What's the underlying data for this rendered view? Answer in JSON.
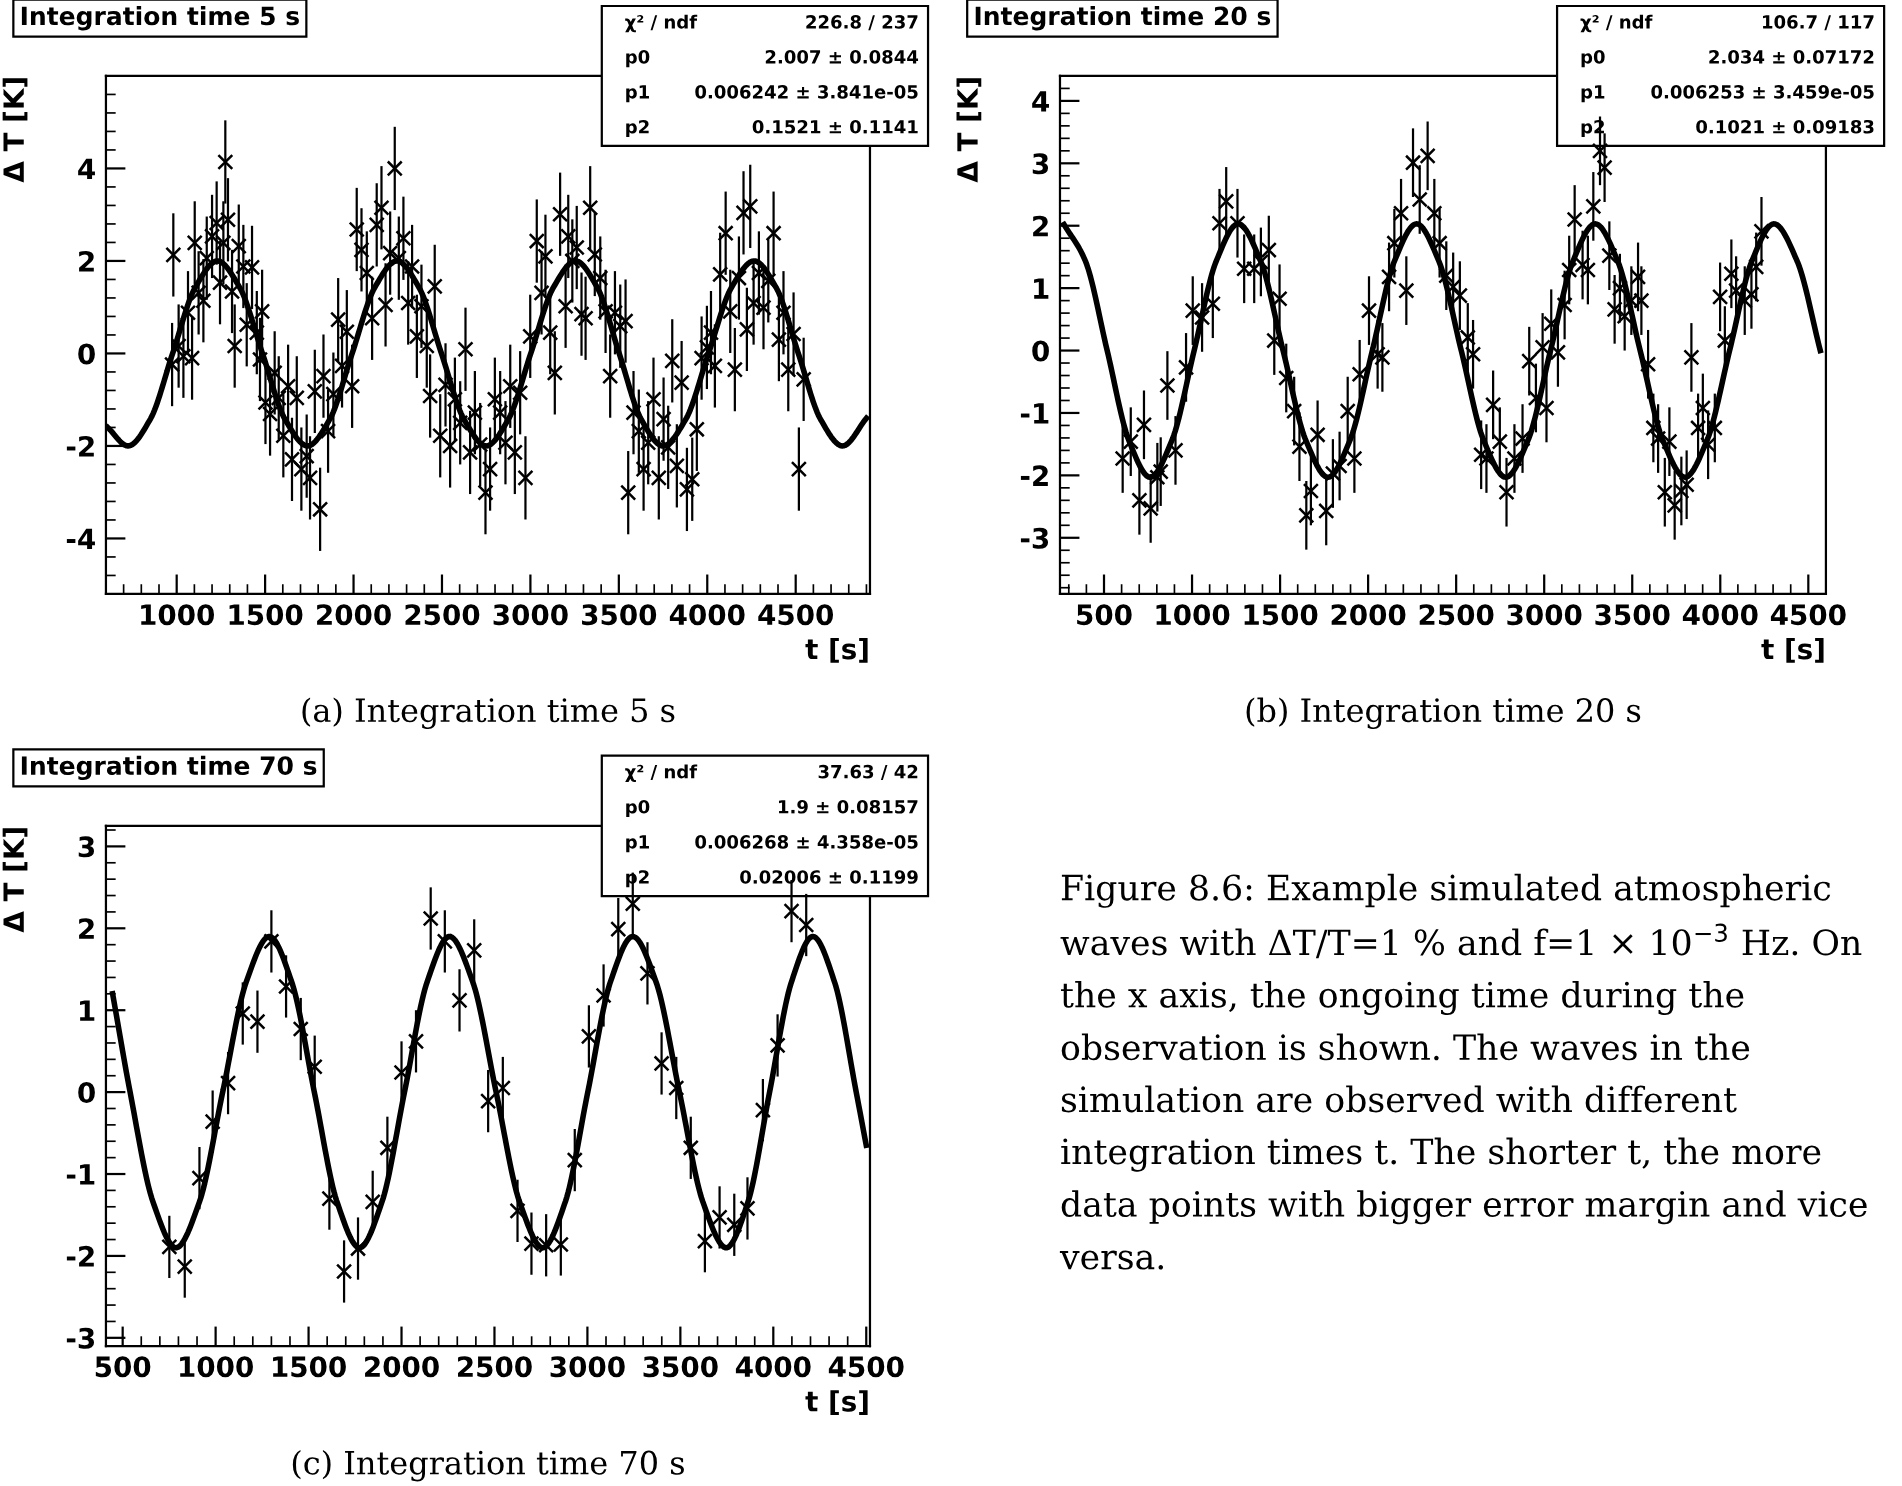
{
  "chart_data": [
    {
      "type": "scatter",
      "title": "Integration time 5 s",
      "xlabel": "t [s]",
      "ylabel": "Δ T [K]",
      "annotations": [
        "χ² / ndf",
        "226.8 / 237",
        "p0",
        "2.007 ± 0.0844",
        "p1",
        "0.006242 ± 3.841e-05",
        "p2",
        "0.1521 ± 0.1141",
        "(a) Integration time 5 s"
      ],
      "xlim": [
        600,
        4920
      ],
      "ylim": [
        -5.2,
        6.0
      ],
      "xticks": [
        1000,
        1500,
        2000,
        2500,
        3000,
        3500,
        4000,
        4500
      ],
      "yticks": [
        -4,
        -2,
        0,
        2,
        4
      ],
      "series": [
        {
          "type": "scatter",
          "color": "#000000",
          "marker": "cross",
          "x": [
            981,
            974,
            1011,
            1038,
            1064,
            1087,
            1102,
            1124,
            1151,
            1170,
            1200,
            1226,
            1245,
            1264,
            1275,
            1290,
            1313,
            1328,
            1351,
            1377,
            1396,
            1426,
            1453,
            1471,
            1483,
            1502,
            1528,
            1554,
            1577,
            1603,
            1630,
            1652,
            1679,
            1705,
            1735,
            1754,
            1781,
            1811,
            1830,
            1856,
            1886,
            1913,
            1935,
            1962,
            1992,
            2018,
            2045,
            2075,
            2105,
            2131,
            2158,
            2181,
            2207,
            2233,
            2256,
            2282,
            2309,
            2331,
            2358,
            2384,
            2414,
            2433,
            2459,
            2490,
            2520,
            2546,
            2573,
            2603,
            2633,
            2659,
            2686,
            2716,
            2746,
            2772,
            2799,
            2829,
            2859,
            2886,
            2912,
            2942,
            2972,
            2999,
            3036,
            3063,
            3085,
            3112,
            3138,
            3168,
            3199,
            3214,
            3237,
            3262,
            3289,
            3312,
            3338,
            3364,
            3395,
            3425,
            3451,
            3478,
            3508,
            3538,
            3553,
            3583,
            3613,
            3640,
            3666,
            3696,
            3726,
            3753,
            3779,
            3802,
            3828,
            3855,
            3885,
            3915,
            3941,
            3968,
            3998,
            4021,
            4043,
            4073,
            4104,
            4130,
            4156,
            4179,
            4205,
            4224,
            4243,
            4262,
            4292,
            4318,
            4345,
            4375,
            4405,
            4431,
            4458,
            4488,
            4518,
            4545
          ],
          "values": [
            2.13,
            -0.24,
            0.16,
            -0.06,
            0.88,
            -0.1,
            2.39,
            1.31,
            1.14,
            2.06,
            2.53,
            2.82,
            1.53,
            2.39,
            4.14,
            2.89,
            1.34,
            0.16,
            2.32,
            1.88,
            0.62,
            1.86,
            0.45,
            -0.13,
            0.91,
            -1.06,
            -1.31,
            -0.42,
            -0.96,
            -1.78,
            -0.71,
            -2.29,
            -0.96,
            -2.5,
            -2.22,
            -2.69,
            -0.82,
            -3.37,
            -0.49,
            -1.68,
            -0.88,
            0.73,
            -0.27,
            0.47,
            -0.71,
            2.68,
            2.24,
            1.74,
            0.76,
            2.78,
            3.15,
            1.05,
            2.17,
            4.0,
            2.06,
            2.49,
            1.09,
            1.88,
            0.37,
            1.02,
            0.16,
            -0.92,
            1.45,
            -1.78,
            -0.68,
            -2.0,
            -0.99,
            -1.5,
            0.09,
            -2.14,
            -1.28,
            -1.97,
            -3.01,
            -2.5,
            -0.99,
            -1.28,
            -1.93,
            -0.71,
            -2.14,
            -0.85,
            -2.69,
            0.37,
            2.43,
            1.31,
            2.1,
            0.45,
            -0.42,
            3.01,
            1.02,
            2.53,
            2.0,
            2.29,
            0.85,
            0.76,
            3.15,
            2.14,
            1.63,
            0.91,
            -0.49,
            0.88,
            0.59,
            0.7,
            -3.01,
            -1.28,
            -1.68,
            -2.5,
            -1.93,
            -0.99,
            -2.69,
            -1.42,
            -2.03,
            -0.16,
            -2.43,
            -0.63,
            -2.94,
            -2.72,
            -1.64,
            -0.1,
            0.13,
            0.45,
            -0.27,
            1.71,
            2.6,
            0.91,
            -0.35,
            1.63,
            3.04,
            0.52,
            3.18,
            1.09,
            1.74,
            0.99,
            1.57,
            2.6,
            0.3,
            0.88,
            -0.35,
            0.42,
            -2.5,
            -0.56
          ],
          "errors": [
            0.9,
            0.9,
            0.9,
            0.9,
            0.9,
            0.9,
            0.9,
            0.9,
            0.9,
            0.9,
            0.9,
            0.9,
            0.9,
            0.9,
            0.9,
            0.9,
            0.9,
            0.9,
            0.9,
            0.9,
            0.9,
            0.9,
            0.9,
            0.9,
            0.9,
            0.9,
            0.9,
            0.9,
            0.9,
            0.9,
            0.9,
            0.9,
            0.9,
            0.9,
            0.9,
            0.9,
            0.9,
            0.9,
            0.9,
            0.9,
            0.9,
            0.9,
            0.9,
            0.9,
            0.9,
            0.9,
            0.9,
            0.9,
            0.9,
            0.9,
            0.9,
            0.9,
            0.9,
            0.9,
            0.9,
            0.9,
            0.9,
            0.9,
            0.9,
            0.9,
            0.9,
            0.9,
            0.9,
            0.9,
            0.9,
            0.9,
            0.9,
            0.9,
            0.9,
            0.9,
            0.9,
            0.9,
            0.9,
            0.9,
            0.9,
            0.9,
            0.9,
            0.9,
            0.9,
            0.9,
            0.9,
            0.9,
            0.9,
            0.9,
            0.9,
            0.9,
            0.9,
            0.9,
            0.9,
            0.9,
            0.9,
            0.9,
            0.9,
            0.9,
            0.9,
            0.9,
            0.9,
            0.9,
            0.9,
            0.9,
            0.9,
            0.9,
            0.9,
            0.9,
            0.9,
            0.9,
            0.9,
            0.9,
            0.9,
            0.9,
            0.9,
            0.9,
            0.9,
            0.9,
            0.9,
            0.9,
            0.9,
            0.9,
            0.9,
            0.9,
            0.9,
            0.9,
            0.9,
            0.9,
            0.9,
            0.9,
            0.9,
            0.9,
            0.9,
            0.9,
            0.9,
            0.9,
            0.9,
            0.9,
            0.9,
            0.9,
            0.9,
            0.9,
            0.9,
            0.9
          ]
        },
        {
          "type": "line",
          "color": "#000000",
          "marker": "none",
          "line_style": "solid",
          "x": [
            610,
            725,
            851,
            977,
            1104,
            1230,
            1357,
            1485,
            1612,
            1740,
            1866,
            1992,
            2119,
            2245,
            2371,
            2497,
            2624,
            2750,
            2876,
            3002,
            3129,
            3255,
            3379,
            3502,
            3626,
            3750,
            3879,
            4007,
            4136,
            4265,
            4390,
            4515,
            4640,
            4765,
            4900
          ],
          "values": [
            -1.6,
            -2.0,
            -1.42,
            0,
            1.42,
            2.0,
            1.42,
            0,
            -1.42,
            -2.0,
            -1.42,
            0,
            1.42,
            2.0,
            1.42,
            0,
            -1.42,
            -2.0,
            -1.42,
            0,
            1.42,
            2.0,
            1.42,
            0,
            -1.42,
            -2.0,
            -1.42,
            0,
            1.42,
            2.0,
            1.42,
            0,
            -1.42,
            -2.0,
            -1.4
          ]
        }
      ]
    },
    {
      "type": "scatter",
      "title": "Integration time 20 s",
      "xlabel": "t [s]",
      "ylabel": "Δ T [K]",
      "annotations": [
        "χ² / ndf",
        "106.7 / 117",
        "p0",
        "2.034 ± 0.07172",
        "p1",
        "0.006253 ± 3.459e-05",
        "p2",
        "0.1021 ± 0.09183",
        "(b) Integration time 20 s"
      ],
      "xlim": [
        250,
        4600
      ],
      "ylim": [
        -3.9,
        4.4
      ],
      "xticks": [
        500,
        1000,
        1500,
        2000,
        2500,
        3000,
        3500,
        4000,
        4500
      ],
      "yticks": [
        -3,
        -2,
        -1,
        0,
        1,
        2,
        3,
        4
      ],
      "series": [
        {
          "type": "scatter",
          "color": "#000000",
          "marker": "cross",
          "x": [
            606,
            652,
            701,
            727,
            765,
            803,
            822,
            860,
            906,
            966,
            1004,
            1057,
            1118,
            1156,
            1194,
            1258,
            1296,
            1353,
            1391,
            1436,
            1467,
            1497,
            1535,
            1580,
            1610,
            1649,
            1675,
            1713,
            1762,
            1800,
            1838,
            1884,
            1922,
            1952,
            2005,
            2054,
            2081,
            2119,
            2149,
            2187,
            2217,
            2255,
            2293,
            2338,
            2376,
            2406,
            2444,
            2483,
            2521,
            2566,
            2596,
            2642,
            2672,
            2710,
            2748,
            2786,
            2831,
            2877,
            2915,
            2953,
            2991,
            3013,
            3040,
            3078,
            3116,
            3142,
            3173,
            3218,
            3248,
            3279,
            3317,
            3343,
            3370,
            3400,
            3430,
            3457,
            3495,
            3533,
            3552,
            3590,
            3620,
            3647,
            3685,
            3711,
            3741,
            3779,
            3809,
            3836,
            3874,
            3901,
            3931,
            3969,
            3999,
            4026,
            4063,
            4090,
            4139,
            4177,
            4204,
            4234
          ],
          "values": [
            -1.73,
            -1.46,
            -2.4,
            -1.19,
            -2.53,
            -2.03,
            -1.94,
            -0.56,
            -1.6,
            -0.27,
            0.64,
            0.53,
            0.75,
            2.04,
            2.39,
            2.04,
            1.31,
            1.31,
            1.42,
            1.61,
            0.16,
            0.83,
            -0.44,
            -0.97,
            -1.54,
            -2.64,
            -2.25,
            -1.35,
            -2.57,
            -1.97,
            -1.85,
            -0.97,
            -1.73,
            -0.38,
            0.64,
            -0.06,
            -0.11,
            1.18,
            1.72,
            2.2,
            0.96,
            3.01,
            2.42,
            3.12,
            2.2,
            1.72,
            1.2,
            1.02,
            0.88,
            0.21,
            -0.06,
            -1.67,
            -1.73,
            -0.87,
            -1.46,
            -2.27,
            -1.73,
            -1.41,
            -0.17,
            -0.76,
            0.05,
            -0.92,
            0.43,
            -0.03,
            0.73,
            1.29,
            2.1,
            1.37,
            1.29,
            2.31,
            3.2,
            2.93,
            1.52,
            0.66,
            1.0,
            0.55,
            0.8,
            1.18,
            0.8,
            -0.22,
            -1.24,
            -1.41,
            -2.27,
            -1.46,
            -2.48,
            -2.25,
            -2.15,
            -0.11,
            -1.24,
            -0.92,
            -1.51,
            -1.24,
            0.86,
            0.16,
            1.23,
            0.96,
            0.8,
            0.9,
            1.34,
            1.91
          ],
          "errors": [
            0.55,
            0.55,
            0.55,
            0.55,
            0.55,
            0.55,
            0.55,
            0.55,
            0.55,
            0.55,
            0.55,
            0.55,
            0.55,
            0.55,
            0.55,
            0.55,
            0.55,
            0.55,
            0.55,
            0.55,
            0.55,
            0.55,
            0.55,
            0.55,
            0.55,
            0.55,
            0.55,
            0.55,
            0.55,
            0.55,
            0.55,
            0.55,
            0.55,
            0.55,
            0.55,
            0.55,
            0.55,
            0.55,
            0.55,
            0.55,
            0.55,
            0.55,
            0.55,
            0.55,
            0.55,
            0.55,
            0.55,
            0.55,
            0.55,
            0.55,
            0.55,
            0.55,
            0.55,
            0.55,
            0.55,
            0.55,
            0.55,
            0.55,
            0.55,
            0.55,
            0.55,
            0.55,
            0.55,
            0.55,
            0.55,
            0.55,
            0.55,
            0.55,
            0.55,
            0.55,
            0.55,
            0.55,
            0.55,
            0.55,
            0.55,
            0.55,
            0.55,
            0.55,
            0.55,
            0.55,
            0.55,
            0.55,
            0.55,
            0.55,
            0.55,
            0.55,
            0.55,
            0.55,
            0.55,
            0.55,
            0.55,
            0.55,
            0.55,
            0.55,
            0.55,
            0.55,
            0.55,
            0.55,
            0.55,
            0.55
          ]
        },
        {
          "type": "line",
          "color": "#000000",
          "marker": "none",
          "line_style": "solid",
          "x": [
            273,
            395,
            518,
            640,
            762,
            887,
            1012,
            1137,
            1262,
            1390,
            1517,
            1645,
            1772,
            1898,
            2024,
            2149,
            2275,
            2402,
            2529,
            2655,
            2782,
            2909,
            3036,
            3163,
            3290,
            3418,
            3545,
            3673,
            3800,
            3926,
            4053,
            4179,
            4305,
            4437,
            4568
          ],
          "values": [
            2.02,
            1.43,
            0,
            -1.43,
            -2.03,
            -1.43,
            0,
            1.43,
            2.03,
            1.43,
            0,
            -1.43,
            -2.03,
            -1.43,
            0,
            1.43,
            2.03,
            1.43,
            0,
            -1.43,
            -2.03,
            -1.43,
            0,
            1.43,
            2.03,
            1.43,
            0,
            -1.43,
            -2.03,
            -1.43,
            0,
            1.43,
            2.03,
            1.43,
            0
          ]
        }
      ]
    },
    {
      "type": "scatter",
      "title": "Integration time 70 s",
      "xlabel": "t [s]",
      "ylabel": "Δ T [K]",
      "annotations": [
        "χ² / ndf",
        "37.63 / 42",
        "p0",
        "1.9 ± 0.08157",
        "p1",
        "0.006268 ± 4.358e-05",
        "p2",
        "0.02006 ± 0.1199",
        "(c) Integration time 70 s"
      ],
      "xlim": [
        410,
        4520
      ],
      "ylim": [
        -3.1,
        3.25
      ],
      "xticks": [
        500,
        1000,
        1500,
        2000,
        2500,
        3000,
        3500,
        4000,
        4500
      ],
      "yticks": [
        -3,
        -2,
        -1,
        0,
        1,
        2,
        3
      ],
      "series": [
        {
          "type": "scatter",
          "color": "#000000",
          "marker": "cross",
          "x": [
            751,
            834,
            913,
            984,
            1067,
            1146,
            1225,
            1300,
            1379,
            1458,
            1533,
            1612,
            1691,
            1766,
            1845,
            1924,
            2000,
            2078,
            2157,
            2233,
            2312,
            2391,
            2466,
            2545,
            2624,
            2699,
            2778,
            2857,
            2932,
            3008,
            3087,
            3166,
            3244,
            3323,
            3399,
            3478,
            3556,
            3632,
            3711,
            3790,
            3861,
            3944,
            4023,
            4098,
            4177
          ],
          "values": [
            -1.89,
            -2.13,
            -1.05,
            -0.36,
            0.11,
            0.96,
            0.86,
            1.84,
            1.29,
            0.77,
            0.31,
            -1.3,
            -2.19,
            -1.91,
            -1.34,
            -0.68,
            0.24,
            0.62,
            2.12,
            1.84,
            1.12,
            1.73,
            -0.11,
            0.05,
            -1.45,
            -1.85,
            -1.87,
            -1.86,
            -0.83,
            0.68,
            1.18,
            1.99,
            2.3,
            1.45,
            0.35,
            0.05,
            -0.68,
            -1.82,
            -1.53,
            -1.62,
            -1.42,
            -0.22,
            0.57,
            2.21,
            2.04
          ],
          "errors": [
            0.38,
            0.38,
            0.38,
            0.38,
            0.38,
            0.38,
            0.38,
            0.38,
            0.38,
            0.38,
            0.38,
            0.38,
            0.38,
            0.38,
            0.38,
            0.38,
            0.38,
            0.38,
            0.38,
            0.38,
            0.38,
            0.38,
            0.38,
            0.38,
            0.38,
            0.38,
            0.38,
            0.38,
            0.38,
            0.38,
            0.38,
            0.38,
            0.38,
            0.38,
            0.38,
            0.38,
            0.38,
            0.38,
            0.38,
            0.38,
            0.38,
            0.38,
            0.38,
            0.38,
            0.38
          ]
        },
        {
          "type": "line",
          "color": "#000000",
          "marker": "none",
          "line_style": "solid",
          "x": [
            446,
            540,
            663,
            787,
            913,
            1038,
            1164,
            1289,
            1410,
            1531,
            1653,
            1774,
            1895,
            2016,
            2137,
            2258,
            2384,
            2509,
            2635,
            2760,
            2881,
            3002,
            3123,
            3244,
            3370,
            3495,
            3621,
            3747,
            3864,
            3980,
            4097,
            4213,
            4330,
            4446,
            4500
          ],
          "values": [
            1.2,
            0,
            -1.34,
            -1.9,
            -1.34,
            0,
            1.34,
            1.9,
            1.34,
            0,
            -1.34,
            -1.9,
            -1.34,
            0,
            1.34,
            1.9,
            1.34,
            0,
            -1.34,
            -1.9,
            -1.34,
            0,
            1.34,
            1.9,
            1.34,
            0,
            -1.34,
            -1.9,
            -1.34,
            0,
            1.34,
            1.9,
            1.34,
            0,
            -0.65
          ]
        }
      ]
    },
    {
      "type": "other",
      "annotations": [
        "Figure 8.6: Example simulated atmospheric waves with ΔT/T=1 % and f=1 × 10$^{−3}$ Hz. On the x axis, the ongoing time during the observation is shown. The waves in the simulation are observed with different integration times t. The shorter t, the more data points with bigger error margin and vice versa."
      ]
    }
  ]
}
